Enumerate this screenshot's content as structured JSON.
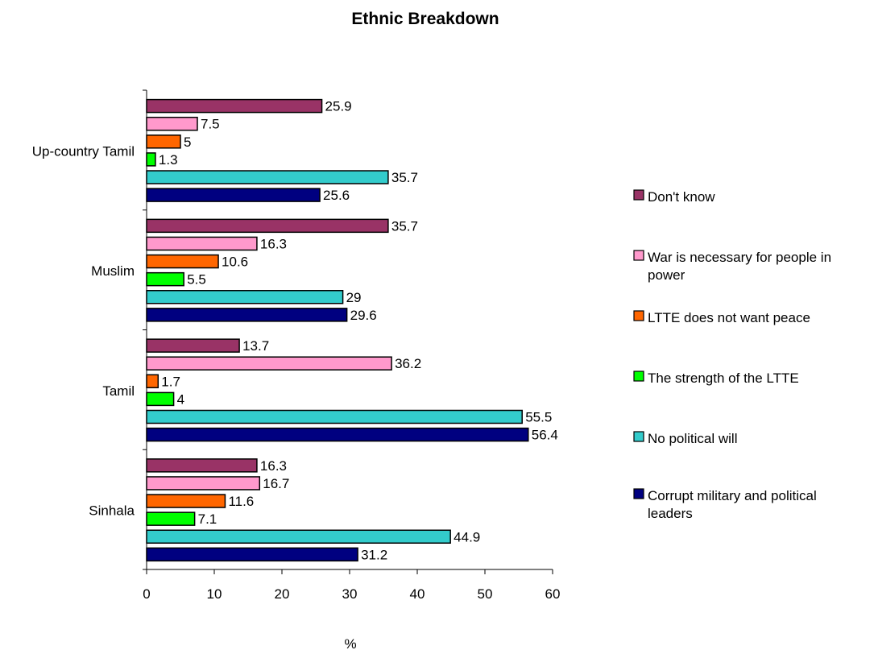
{
  "chart_data": {
    "type": "bar",
    "orientation": "horizontal",
    "title": "Ethnic Breakdown",
    "xlabel": "%",
    "ylabel": "",
    "xlim": [
      0,
      60
    ],
    "x_ticks": [
      0,
      10,
      20,
      30,
      40,
      50,
      60
    ],
    "grid": false,
    "legend_position": "right",
    "categories": [
      "Sinhala",
      "Tamil",
      "Muslim",
      "Up-country Tamil"
    ],
    "series": [
      {
        "name": "Corrupt military and political leaders",
        "color": "#000080",
        "values": [
          31.2,
          56.4,
          29.6,
          25.6
        ]
      },
      {
        "name": "No political will",
        "color": "#33CCCC",
        "values": [
          44.9,
          55.5,
          29,
          35.7
        ]
      },
      {
        "name": "The strength of the LTTE",
        "color": "#00FF00",
        "values": [
          7.1,
          4,
          5.5,
          1.3
        ]
      },
      {
        "name": "LTTE does not want peace",
        "color": "#FF6600",
        "values": [
          11.6,
          1.7,
          10.6,
          5
        ]
      },
      {
        "name": "War is necessary for people in power",
        "color": "#FF99CC",
        "values": [
          16.7,
          36.2,
          16.3,
          7.5
        ]
      },
      {
        "name": "Don't know",
        "color": "#993366",
        "values": [
          16.3,
          13.7,
          35.7,
          25.9
        ]
      }
    ],
    "legend": [
      {
        "lines": [
          "Don't know"
        ],
        "color": "#993366"
      },
      {
        "lines": [
          "War is necessary for people in",
          "power"
        ],
        "color": "#FF99CC"
      },
      {
        "lines": [
          "LTTE does not want peace"
        ],
        "color": "#FF6600"
      },
      {
        "lines": [
          "The strength of the LTTE"
        ],
        "color": "#00FF00"
      },
      {
        "lines": [
          "No political will"
        ],
        "color": "#33CCCC"
      },
      {
        "lines": [
          "Corrupt military and political",
          "leaders"
        ],
        "color": "#000080"
      }
    ]
  }
}
